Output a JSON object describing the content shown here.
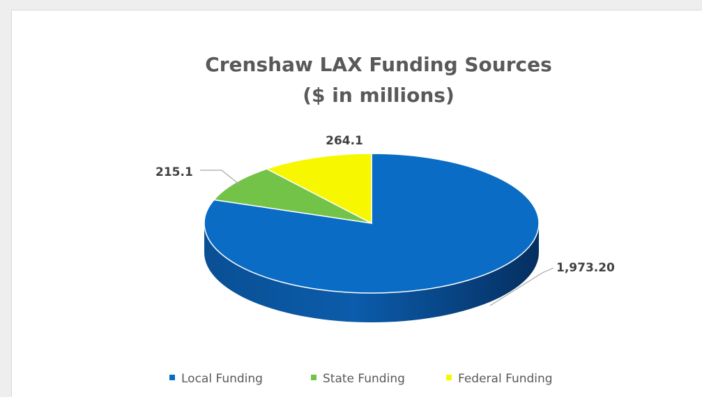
{
  "chart_data": {
    "type": "pie",
    "title": "Crenshaw LAX Funding Sources",
    "subtitle": "($ in millions)",
    "categories": [
      "Local Funding",
      "State Funding",
      "Federal Funding"
    ],
    "values": [
      1973.2,
      215.1,
      264.1
    ],
    "data_labels": [
      "1,973.20",
      "215.1",
      "264.1"
    ],
    "colors": [
      "#0a6cc4",
      "#74c349",
      "#f7f700"
    ],
    "legend_position": "bottom",
    "style": "3d"
  }
}
